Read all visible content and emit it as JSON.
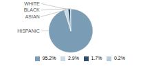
{
  "chart_data": {
    "type": "pie",
    "categories": [
      "HISPANIC",
      "WHITE",
      "BLACK",
      "ASIAN"
    ],
    "values": [
      95.2,
      2.9,
      1.7,
      0.2
    ],
    "value_labels": [
      "95.2%",
      "2.9%",
      "1.7%",
      "0.2%"
    ],
    "colors": [
      "#7a9db5",
      "#c8dae6",
      "#2e4d6b",
      "#b8cdd9"
    ],
    "legend": "bottom"
  }
}
